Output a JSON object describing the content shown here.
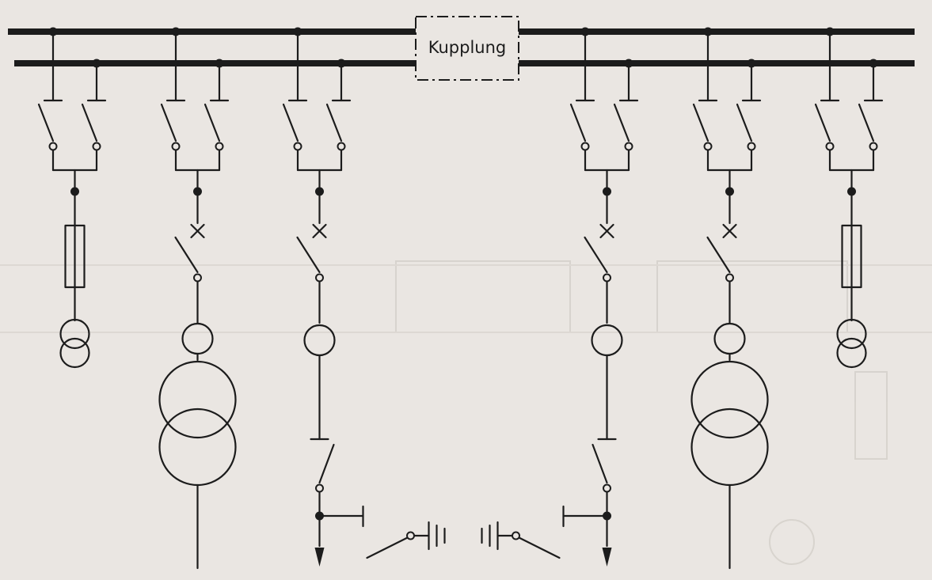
{
  "diagram": {
    "coupler_label": "Kupplung",
    "element_types": {
      "busbar": "busbar-line",
      "disconnector": "disconnector-icon",
      "circuit_breaker": "circuit-breaker-icon",
      "fuse": "fuse-icon",
      "voltage_transformer": "voltage-transformer-icon",
      "current_transformer": "current-transformer-icon",
      "power_transformer": "power-transformer-icon",
      "earthing_switch": "earthing-switch-icon",
      "capacitor": "capacitor-icon",
      "feeder_arrow": "arrow-down-icon"
    },
    "feeders": [
      {
        "id": "bay-1",
        "kind": "voltage-transformer-fused"
      },
      {
        "id": "bay-2",
        "kind": "transformer-feeder"
      },
      {
        "id": "bay-3",
        "kind": "line-feeder-with-earthing"
      },
      {
        "id": "bay-4",
        "kind": "line-feeder-with-earthing"
      },
      {
        "id": "bay-5",
        "kind": "transformer-feeder"
      },
      {
        "id": "bay-6",
        "kind": "voltage-transformer-fused"
      }
    ],
    "colors": {
      "background": "#eae6e2",
      "ink": "#1c1c1c",
      "faint_bleed_text": "#d2cdc8"
    }
  }
}
